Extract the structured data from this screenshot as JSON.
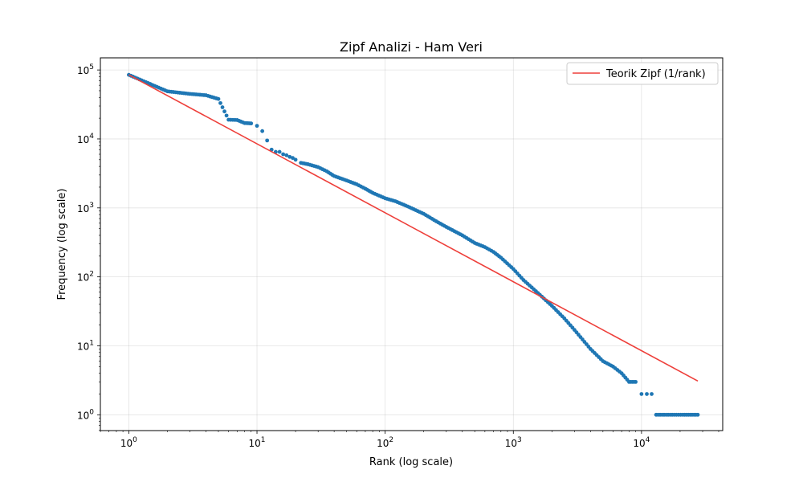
{
  "chart_data": {
    "type": "scatter",
    "title": "Zipf Analizi - Ham Veri",
    "xlabel": "Rank (log scale)",
    "ylabel": "Frequency (log scale)",
    "x_scale": "log",
    "y_scale": "log",
    "xlim": [
      0.6,
      43000
    ],
    "ylim": [
      0.59,
      150000
    ],
    "grid": true,
    "legend_position": "upper right",
    "x_ticks": [
      {
        "value": 1,
        "base": "10",
        "exp": "0"
      },
      {
        "value": 10,
        "base": "10",
        "exp": "1"
      },
      {
        "value": 100,
        "base": "10",
        "exp": "2"
      },
      {
        "value": 1000,
        "base": "10",
        "exp": "3"
      },
      {
        "value": 10000,
        "base": "10",
        "exp": "4"
      }
    ],
    "y_ticks": [
      {
        "value": 1,
        "base": "10",
        "exp": "0"
      },
      {
        "value": 10,
        "base": "10",
        "exp": "1"
      },
      {
        "value": 100,
        "base": "10",
        "exp": "2"
      },
      {
        "value": 1000,
        "base": "10",
        "exp": "3"
      },
      {
        "value": 10000,
        "base": "10",
        "exp": "4"
      },
      {
        "value": 100000,
        "base": "10",
        "exp": "5"
      }
    ],
    "series": [
      {
        "kind": "scatter",
        "color": "#1f77b4",
        "x": [
          1,
          2,
          3,
          4,
          5,
          6,
          7,
          8,
          9,
          10,
          11,
          12,
          13,
          14,
          15,
          16,
          17,
          18,
          19,
          20,
          22,
          25,
          30,
          35,
          40,
          50,
          60,
          70,
          80,
          100,
          120,
          150,
          200,
          250,
          300,
          400,
          500,
          600,
          700,
          800,
          1000,
          1200,
          1500,
          2000,
          2500,
          3000,
          4000,
          5000,
          6000,
          7000,
          8000,
          9000,
          10000,
          11000,
          12000,
          13000,
          15000,
          18000,
          21000,
          24000,
          27500
        ],
        "y": [
          85000,
          49000,
          45000,
          43000,
          38000,
          19000,
          18800,
          17000,
          16800,
          15500,
          13000,
          9500,
          7000,
          6500,
          6500,
          6000,
          5800,
          5500,
          5300,
          5000,
          4500,
          4300,
          3900,
          3400,
          2900,
          2500,
          2200,
          1900,
          1650,
          1380,
          1250,
          1050,
          820,
          640,
          530,
          400,
          310,
          270,
          230,
          190,
          130,
          90,
          62,
          38,
          25,
          17,
          9,
          6,
          5,
          4,
          3,
          3,
          2,
          2,
          2,
          1,
          1,
          1,
          1,
          1,
          1
        ]
      },
      {
        "kind": "line",
        "name": "Teorik Zipf (1/rank)",
        "color": "#ee3f3a",
        "x": [
          1,
          27500
        ],
        "y": [
          85000,
          3.09
        ]
      }
    ]
  }
}
